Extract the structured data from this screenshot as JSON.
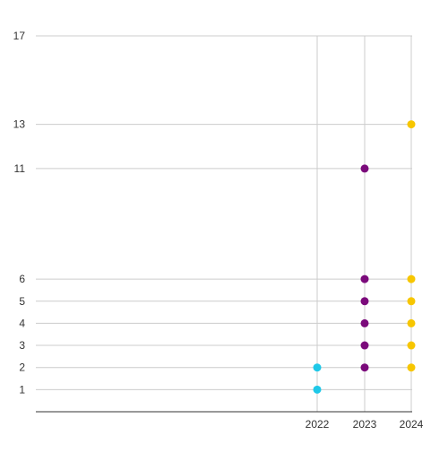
{
  "chart_data": {
    "type": "scatter",
    "title": "",
    "xlabel": "",
    "ylabel": "",
    "x_ticks": [
      "2022",
      "2023",
      "2024"
    ],
    "y_ticks": [
      1,
      2,
      3,
      4,
      5,
      6,
      11,
      13,
      17
    ],
    "ylim": [
      0,
      17
    ],
    "grid": true,
    "legend": "none",
    "series": [
      {
        "color": "#1ec8e8",
        "points": [
          {
            "x": "2022",
            "y": 1
          },
          {
            "x": "2022",
            "y": 2
          }
        ]
      },
      {
        "color": "#7b0a7b",
        "points": [
          {
            "x": "2023",
            "y": 2
          },
          {
            "x": "2023",
            "y": 3
          },
          {
            "x": "2023",
            "y": 4
          },
          {
            "x": "2023",
            "y": 5
          },
          {
            "x": "2023",
            "y": 6
          },
          {
            "x": "2023",
            "y": 11
          }
        ]
      },
      {
        "color": "#f7c600",
        "points": [
          {
            "x": "2024",
            "y": 2
          },
          {
            "x": "2024",
            "y": 3
          },
          {
            "x": "2024",
            "y": 4
          },
          {
            "x": "2024",
            "y": 5
          },
          {
            "x": "2024",
            "y": 6
          },
          {
            "x": "2024",
            "y": 13
          }
        ]
      }
    ]
  }
}
